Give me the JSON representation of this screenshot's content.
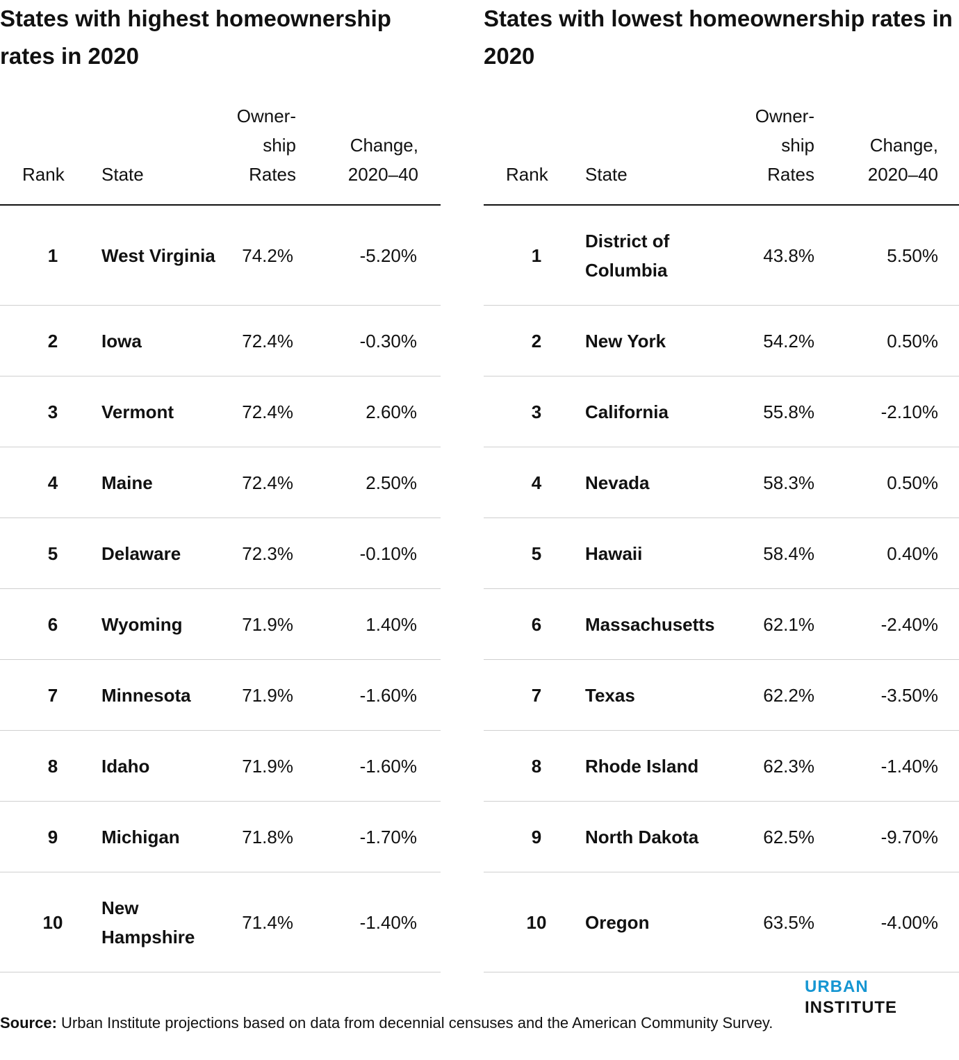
{
  "left": {
    "title": "States with highest homeownership rates in 2020",
    "headers": {
      "rank": "Rank",
      "state": "State",
      "rate": "Owner- ship Rates",
      "change": "Change, 2020–40"
    },
    "rows": [
      {
        "rank": "1",
        "state": "West Virginia",
        "rate": "74.2%",
        "change": "-5.20%"
      },
      {
        "rank": "2",
        "state": "Iowa",
        "rate": "72.4%",
        "change": "-0.30%"
      },
      {
        "rank": "3",
        "state": "Vermont",
        "rate": "72.4%",
        "change": "2.60%"
      },
      {
        "rank": "4",
        "state": "Maine",
        "rate": "72.4%",
        "change": "2.50%"
      },
      {
        "rank": "5",
        "state": "Delaware",
        "rate": "72.3%",
        "change": "-0.10%"
      },
      {
        "rank": "6",
        "state": "Wyoming",
        "rate": "71.9%",
        "change": "1.40%"
      },
      {
        "rank": "7",
        "state": "Minnesota",
        "rate": "71.9%",
        "change": "-1.60%"
      },
      {
        "rank": "8",
        "state": "Idaho",
        "rate": "71.9%",
        "change": "-1.60%"
      },
      {
        "rank": "9",
        "state": "Michigan",
        "rate": "71.8%",
        "change": "-1.70%"
      },
      {
        "rank": "10",
        "state": "New Hampshire",
        "rate": "71.4%",
        "change": "-1.40%"
      }
    ]
  },
  "right": {
    "title": "States with lowest homeownership rates in 2020",
    "headers": {
      "rank": "Rank",
      "state": "State",
      "rate": "Owner- ship Rates",
      "change": "Change, 2020–40"
    },
    "rows": [
      {
        "rank": "1",
        "state": "District of Columbia",
        "rate": "43.8%",
        "change": "5.50%"
      },
      {
        "rank": "2",
        "state": "New York",
        "rate": "54.2%",
        "change": "0.50%"
      },
      {
        "rank": "3",
        "state": "California",
        "rate": "55.8%",
        "change": "-2.10%"
      },
      {
        "rank": "4",
        "state": "Nevada",
        "rate": "58.3%",
        "change": "0.50%"
      },
      {
        "rank": "5",
        "state": "Hawaii",
        "rate": "58.4%",
        "change": "0.40%"
      },
      {
        "rank": "6",
        "state": "Massachusetts",
        "rate": "62.1%",
        "change": "-2.40%"
      },
      {
        "rank": "7",
        "state": "Texas",
        "rate": "62.2%",
        "change": "-3.50%"
      },
      {
        "rank": "8",
        "state": "Rhode Island",
        "rate": "62.3%",
        "change": "-1.40%"
      },
      {
        "rank": "9",
        "state": "North Dakota",
        "rate": "62.5%",
        "change": "-9.70%"
      },
      {
        "rank": "10",
        "state": "Oregon",
        "rate": "63.5%",
        "change": "-4.00%"
      }
    ]
  },
  "logo": {
    "part1": "URBAN",
    "part2": "INSTITUTE",
    "accent_color": "#1696d2"
  },
  "source": {
    "label": "Source:",
    "text": "Urban Institute projections based on data from decennial censuses and the American Community Survey."
  }
}
